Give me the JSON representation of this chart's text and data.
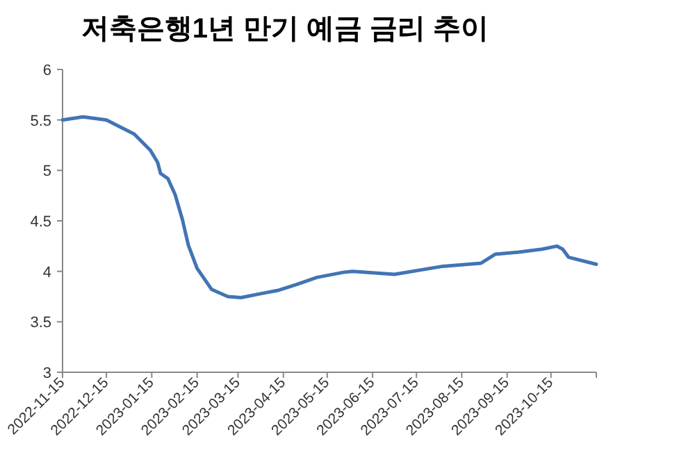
{
  "chart_data": {
    "type": "line",
    "title": "저축은행1년 만기 예금 금리 추이",
    "x": [
      "2022-11-15",
      "2022-11-29",
      "2022-12-15",
      "2023-01-03",
      "2023-01-14",
      "2023-01-19",
      "2023-01-21",
      "2023-01-26",
      "2023-01-31",
      "2023-02-05",
      "2023-02-09",
      "2023-02-15",
      "2023-02-25",
      "2023-03-08",
      "2023-03-17",
      "2023-03-31",
      "2023-04-11",
      "2023-04-24",
      "2023-05-08",
      "2023-05-26",
      "2023-06-01",
      "2023-06-30",
      "2023-08-02",
      "2023-08-28",
      "2023-09-07",
      "2023-09-23",
      "2023-10-09",
      "2023-10-19",
      "2023-10-23",
      "2023-10-27",
      "2023-11-15"
    ],
    "series": [
      {
        "color": "#4274b4",
        "values": [
          5.5,
          5.53,
          5.5,
          5.36,
          5.2,
          5.08,
          4.97,
          4.92,
          4.76,
          4.51,
          4.26,
          4.03,
          3.82,
          3.75,
          3.74,
          3.78,
          3.81,
          3.87,
          3.94,
          3.99,
          4.0,
          3.97,
          4.05,
          4.08,
          4.17,
          4.19,
          4.22,
          4.25,
          4.22,
          4.14,
          4.07
        ]
      }
    ],
    "xlim": [
      "2022-11-15",
      "2023-11-15"
    ],
    "xticks": [
      "2022-11-15",
      "2022-12-15",
      "2023-01-15",
      "2023-02-15",
      "2023-03-15",
      "2023-04-15",
      "2023-05-15",
      "2023-06-15",
      "2023-07-15",
      "2023-08-15",
      "2023-09-15",
      "2023-10-15",
      {
        "value": "2023-11-15",
        "label": null
      }
    ],
    "ylim": [
      3,
      6
    ],
    "yticks": [
      3,
      3.5,
      4,
      4.5,
      5,
      5.5,
      6
    ],
    "grid": false,
    "marker": "none",
    "line_style": "solid"
  }
}
